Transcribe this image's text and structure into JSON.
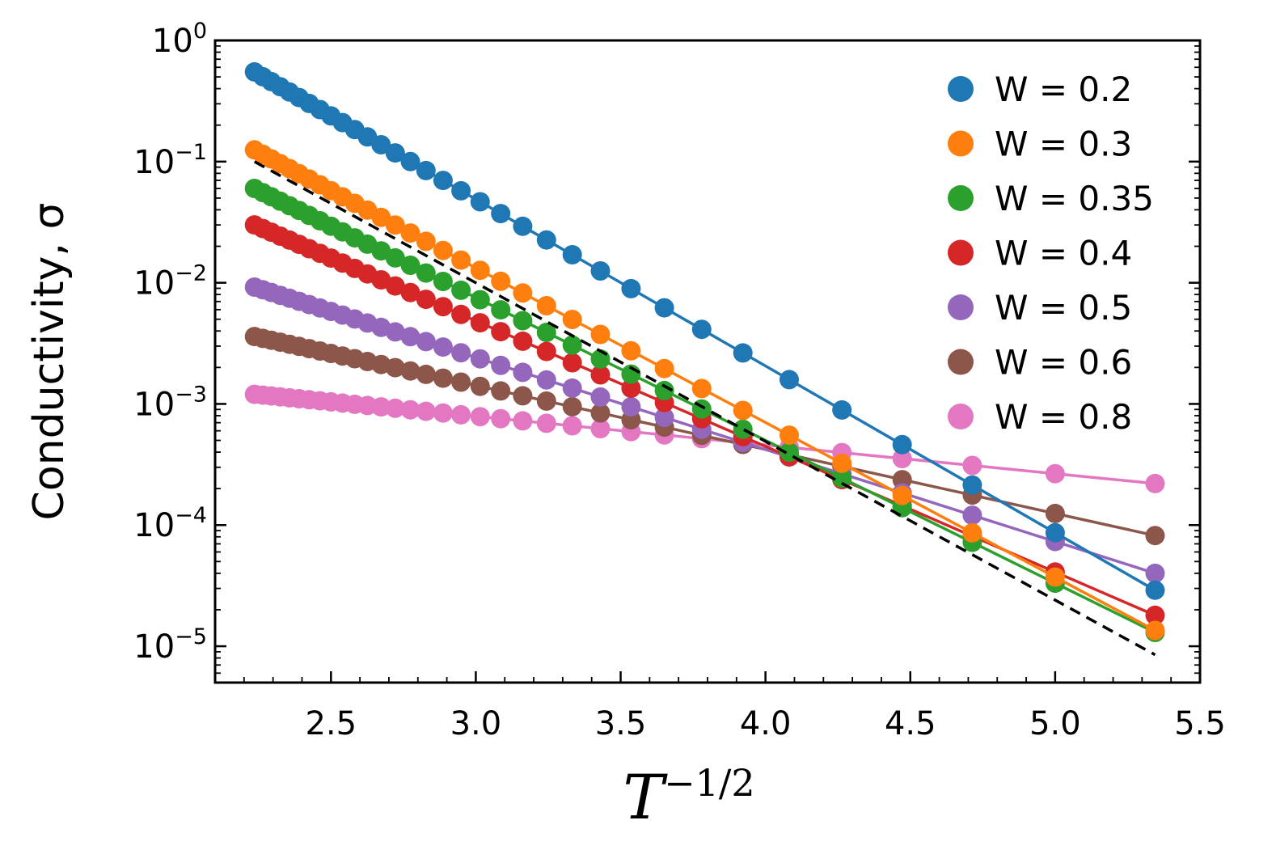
{
  "chart_data": {
    "type": "line",
    "xlabel_base": "T",
    "xlabel_exp": "−1/2",
    "ylabel": "Conductivity, σ",
    "yscale": "log",
    "xlim": [
      2.1,
      5.5
    ],
    "ylim_log10": [
      -5.3,
      0
    ],
    "x_ticks": [
      {
        "value": 2.5,
        "label": "2.5"
      },
      {
        "value": 3.0,
        "label": "3.0"
      },
      {
        "value": 3.5,
        "label": "3.5"
      },
      {
        "value": 4.0,
        "label": "4.0"
      },
      {
        "value": 4.5,
        "label": "4.5"
      },
      {
        "value": 5.0,
        "label": "5.0"
      },
      {
        "value": 5.5,
        "label": "5.5"
      }
    ],
    "y_ticks": [
      {
        "exp": 0,
        "base": "10",
        "label": "0"
      },
      {
        "exp": -1,
        "base": "10",
        "label": "−1"
      },
      {
        "exp": -2,
        "base": "10",
        "label": "−2"
      },
      {
        "exp": -3,
        "base": "10",
        "label": "−3"
      },
      {
        "exp": -4,
        "base": "10",
        "label": "−4"
      },
      {
        "exp": -5,
        "base": "10",
        "label": "−5"
      }
    ],
    "x": [
      2.236,
      2.265,
      2.294,
      2.325,
      2.357,
      2.39,
      2.425,
      2.462,
      2.5,
      2.54,
      2.582,
      2.626,
      2.673,
      2.722,
      2.774,
      2.828,
      2.887,
      2.949,
      3.015,
      3.086,
      3.162,
      3.244,
      3.333,
      3.43,
      3.536,
      3.651,
      3.78,
      3.922,
      4.082,
      4.264,
      4.472,
      4.714,
      5.0,
      5.345
    ],
    "series": [
      {
        "name": "W = 0.2",
        "color": "#1f77b4",
        "start": 0.55,
        "end": 2.9e-05
      },
      {
        "name": "W = 0.3",
        "color": "#ff7f0e",
        "start": 0.125,
        "end": 1.35e-05
      },
      {
        "name": "W = 0.35",
        "color": "#2ca02c",
        "start": 0.06,
        "end": 1.3e-05
      },
      {
        "name": "W = 0.4",
        "color": "#d62728",
        "start": 0.03,
        "end": 1.8e-05
      },
      {
        "name": "W = 0.5",
        "color": "#9467bd",
        "start": 0.0092,
        "end": 4e-05
      },
      {
        "name": "W = 0.6",
        "color": "#8c564b",
        "start": 0.0036,
        "end": 8.2e-05
      },
      {
        "name": "W = 0.8",
        "color": "#e377c2",
        "start": 0.0012,
        "end": 0.00022
      }
    ],
    "fit_line": {
      "style": "dashed",
      "color": "#000000",
      "x": [
        2.236,
        5.345
      ],
      "y": [
        0.1,
        8.5e-06
      ]
    },
    "legend_position": "top-right",
    "grid": false
  }
}
